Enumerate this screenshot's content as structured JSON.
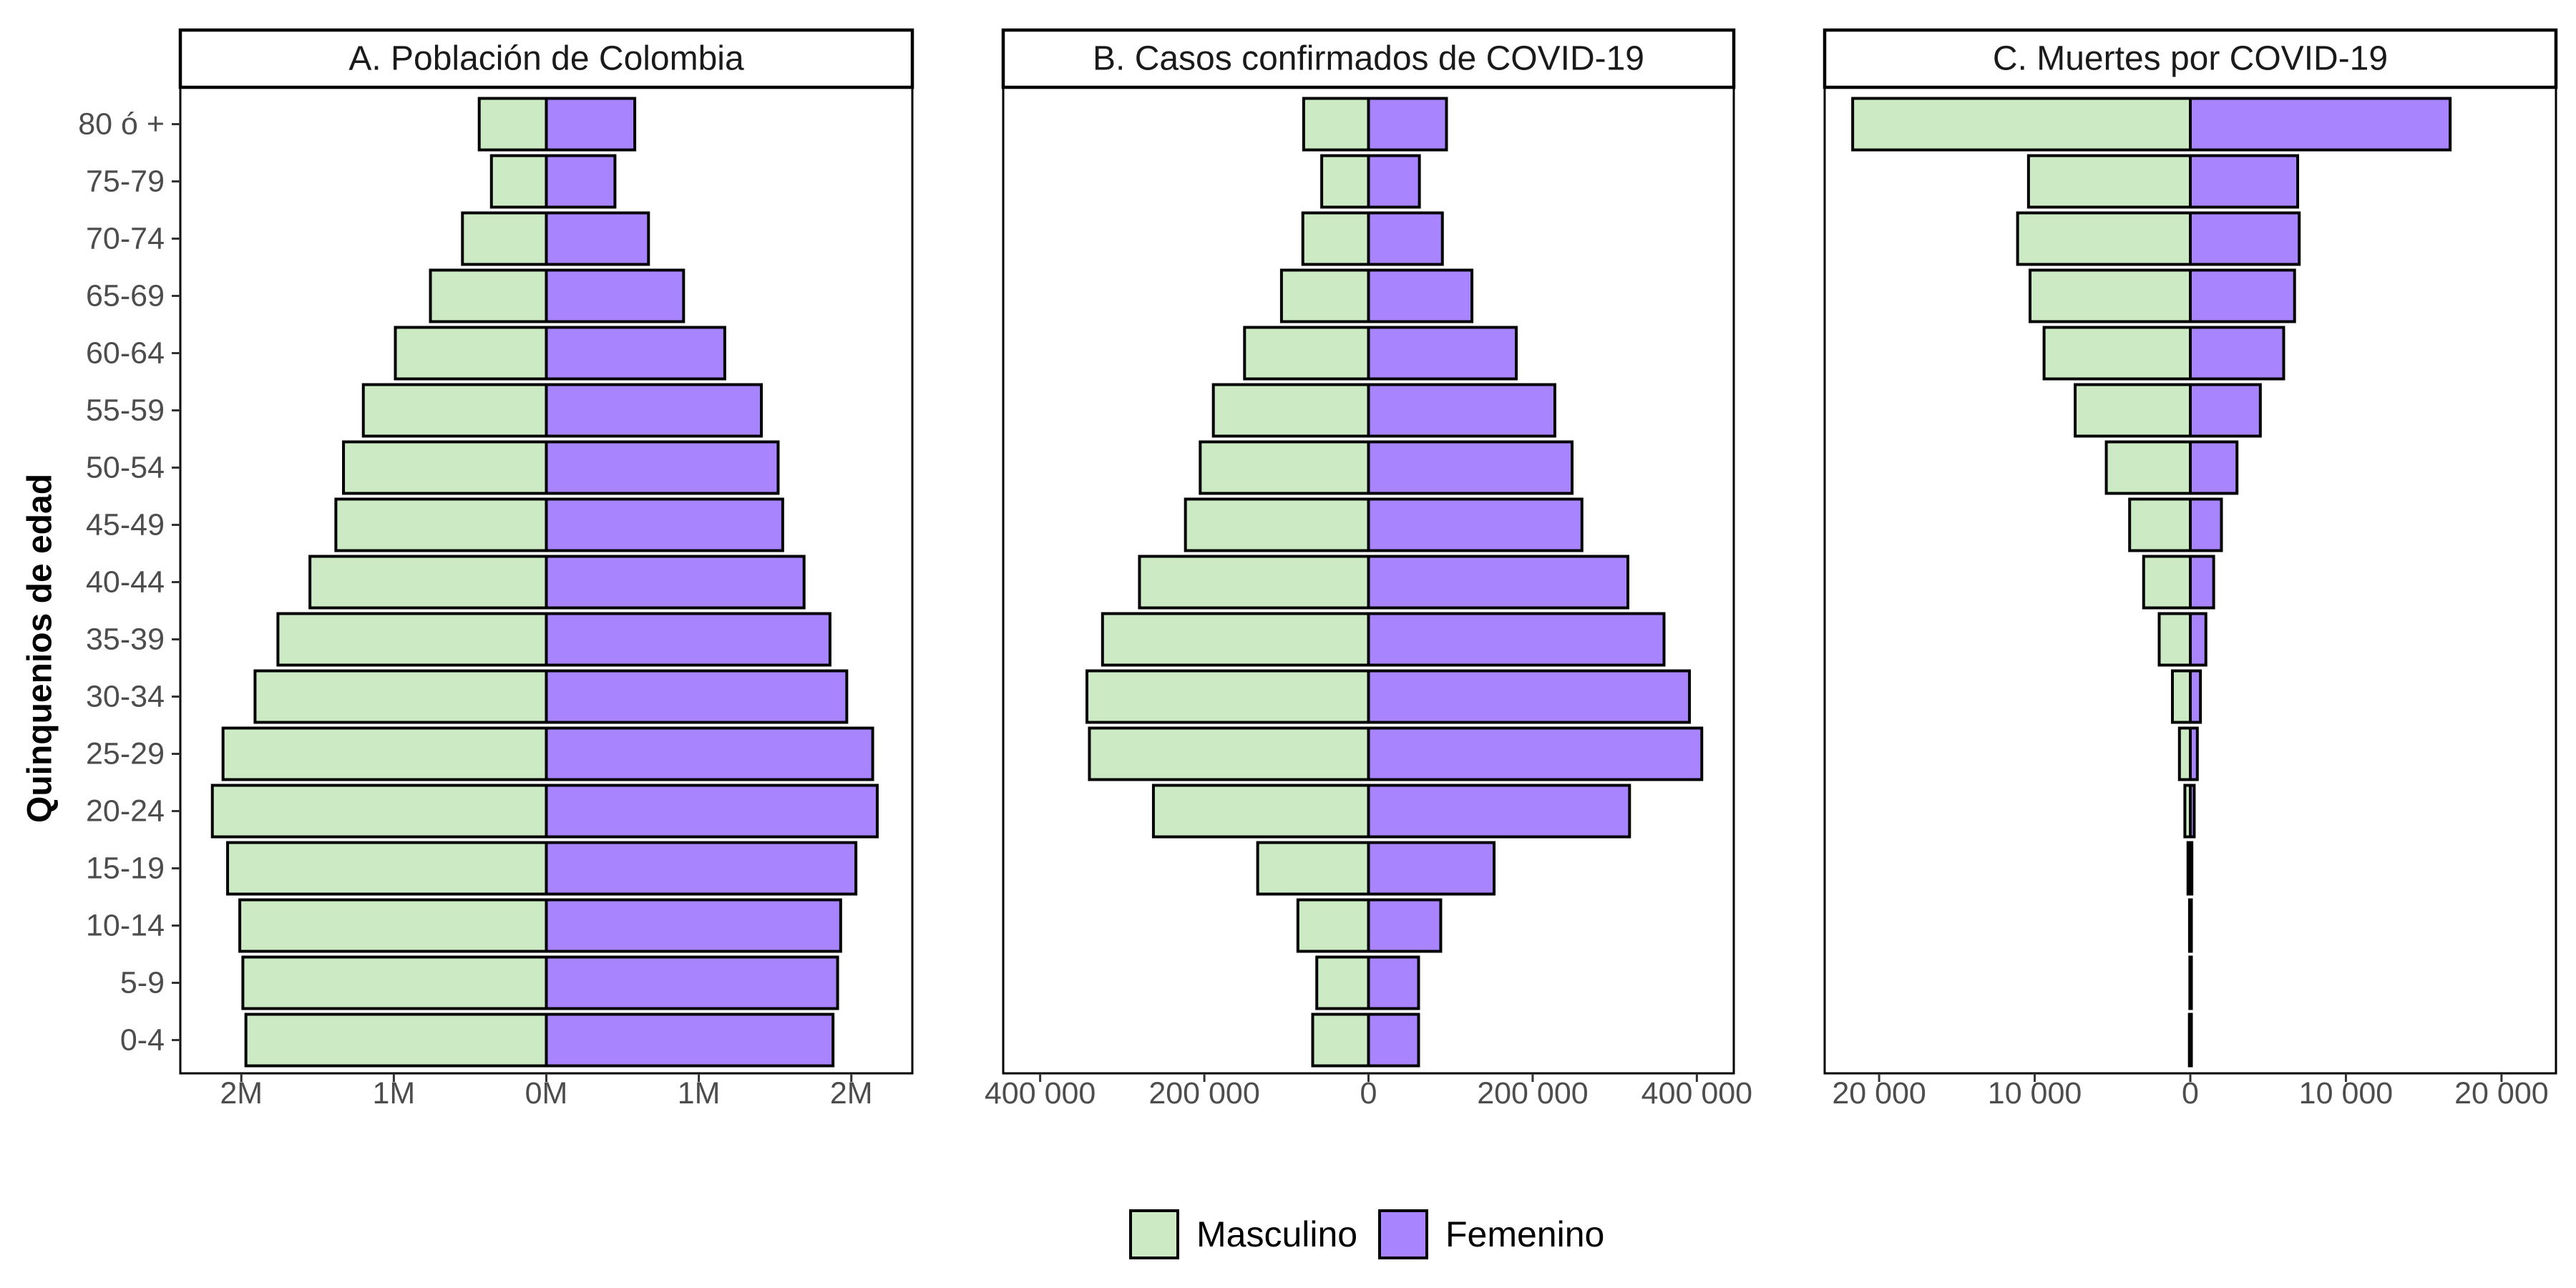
{
  "colors": {
    "male": "#cceac4",
    "female": "#a884ff",
    "outline": "#000000"
  },
  "y_axis_title": "Quinquenios de edad",
  "legend": {
    "position": "bottom",
    "items": [
      "Masculino",
      "Femenino"
    ]
  },
  "chart_data": [
    {
      "type": "bar",
      "orientation": "horizontal",
      "title": "A. Población de Colombia",
      "ylabel": "Quinquenios de edad",
      "xlabel": "",
      "categories": [
        "0-4",
        "5-9",
        "10-14",
        "15-19",
        "20-24",
        "25-29",
        "30-34",
        "35-39",
        "40-44",
        "45-49",
        "50-54",
        "55-59",
        "60-64",
        "65-69",
        "70-74",
        "75-79",
        "80 ó +"
      ],
      "series": [
        {
          "name": "Masculino",
          "values": [
            1970000,
            1990000,
            2010000,
            2090000,
            2190000,
            2120000,
            1910000,
            1760000,
            1550000,
            1380000,
            1330000,
            1200000,
            990000,
            760000,
            550000,
            360000,
            440000
          ]
        },
        {
          "name": "Femenino",
          "values": [
            1880000,
            1910000,
            1930000,
            2030000,
            2170000,
            2140000,
            1970000,
            1860000,
            1690000,
            1550000,
            1520000,
            1410000,
            1170000,
            900000,
            670000,
            450000,
            580000
          ]
        }
      ],
      "xlim": [
        -2400000,
        2400000
      ],
      "x_ticks": [
        -2000000,
        -1000000,
        0,
        1000000,
        2000000
      ],
      "x_tick_labels": [
        "2M",
        "1M",
        "0M",
        "1M",
        "2M"
      ],
      "grid": false
    },
    {
      "type": "bar",
      "orientation": "horizontal",
      "title": "B. Casos confirmados de COVID-19",
      "xlabel": "",
      "categories": [
        "0-4",
        "5-9",
        "10-14",
        "15-19",
        "20-24",
        "25-29",
        "30-34",
        "35-39",
        "40-44",
        "45-49",
        "50-54",
        "55-59",
        "60-64",
        "65-69",
        "70-74",
        "75-79",
        "80 ó +"
      ],
      "series": [
        {
          "name": "Masculino",
          "values": [
            68000,
            63000,
            86000,
            135000,
            262000,
            340000,
            343000,
            324000,
            279000,
            223000,
            205000,
            189000,
            151000,
            106000,
            80000,
            57000,
            79000
          ]
        },
        {
          "name": "Femenino",
          "values": [
            61000,
            61000,
            88000,
            153000,
            318000,
            406000,
            391000,
            360000,
            316000,
            260000,
            248000,
            227000,
            180000,
            126000,
            90000,
            62000,
            95000
          ]
        }
      ],
      "xlim": [
        -445000,
        445000
      ],
      "x_ticks": [
        -400000,
        -200000,
        0,
        200000,
        400000
      ],
      "x_tick_labels": [
        "400 000",
        "200 000",
        "0",
        "200 000",
        "400 000"
      ],
      "grid": false
    },
    {
      "type": "bar",
      "orientation": "horizontal",
      "title": "C. Muertes por COVID-19",
      "xlabel": "",
      "categories": [
        "0-4",
        "5-9",
        "10-14",
        "15-19",
        "20-24",
        "25-29",
        "30-34",
        "35-39",
        "40-44",
        "45-49",
        "50-54",
        "55-59",
        "60-64",
        "65-69",
        "70-74",
        "75-79",
        "80 ó +"
      ],
      "series": [
        {
          "name": "Masculino",
          "values": [
            60,
            30,
            50,
            150,
            350,
            700,
            1150,
            2000,
            3000,
            3900,
            5400,
            7400,
            9400,
            10300,
            11100,
            10400,
            21700
          ]
        },
        {
          "name": "Femenino",
          "values": [
            40,
            20,
            40,
            100,
            250,
            450,
            650,
            1000,
            1500,
            2000,
            3000,
            4500,
            6000,
            6700,
            7000,
            6900,
            16700
          ]
        }
      ],
      "xlim": [
        -23500,
        23500
      ],
      "x_ticks": [
        -20000,
        -10000,
        0,
        10000,
        20000
      ],
      "x_tick_labels": [
        "20 000",
        "10 000",
        "0",
        "10 000",
        "20 000"
      ],
      "grid": false
    }
  ]
}
